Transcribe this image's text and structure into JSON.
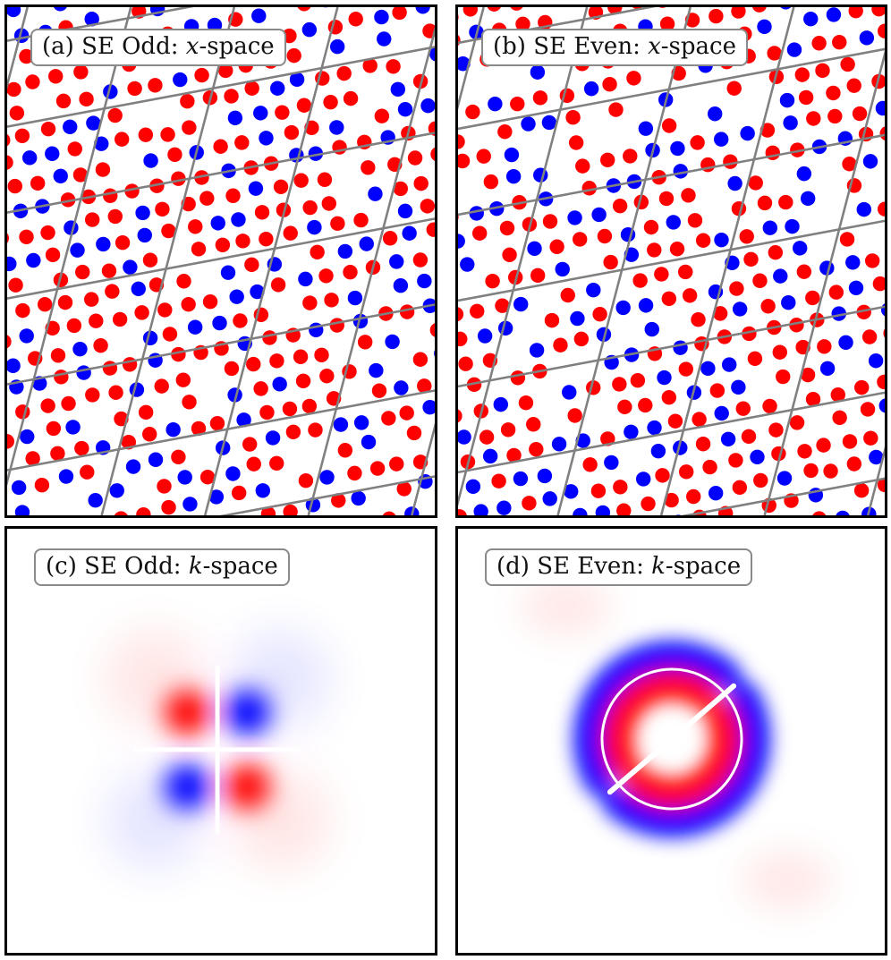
{
  "panels": [
    {
      "id": "a",
      "letter": "(a)",
      "title": "SE Odd",
      "colon": ":",
      "var": "x",
      "space": "-space"
    },
    {
      "id": "b",
      "letter": "(b)",
      "title": "SE Even",
      "colon": ":",
      "var": "x",
      "space": "-space"
    },
    {
      "id": "c",
      "letter": "(c)",
      "title": "SE Odd",
      "colon": ":",
      "var": "k",
      "space": "-space"
    },
    {
      "id": "d",
      "letter": "(d)",
      "title": "SE Even",
      "colon": ":",
      "var": "k",
      "space": "-space"
    }
  ],
  "colors": {
    "positive": "#ff0000",
    "negative": "#0000ff",
    "grid": "#808080",
    "frame": "#000000"
  }
}
